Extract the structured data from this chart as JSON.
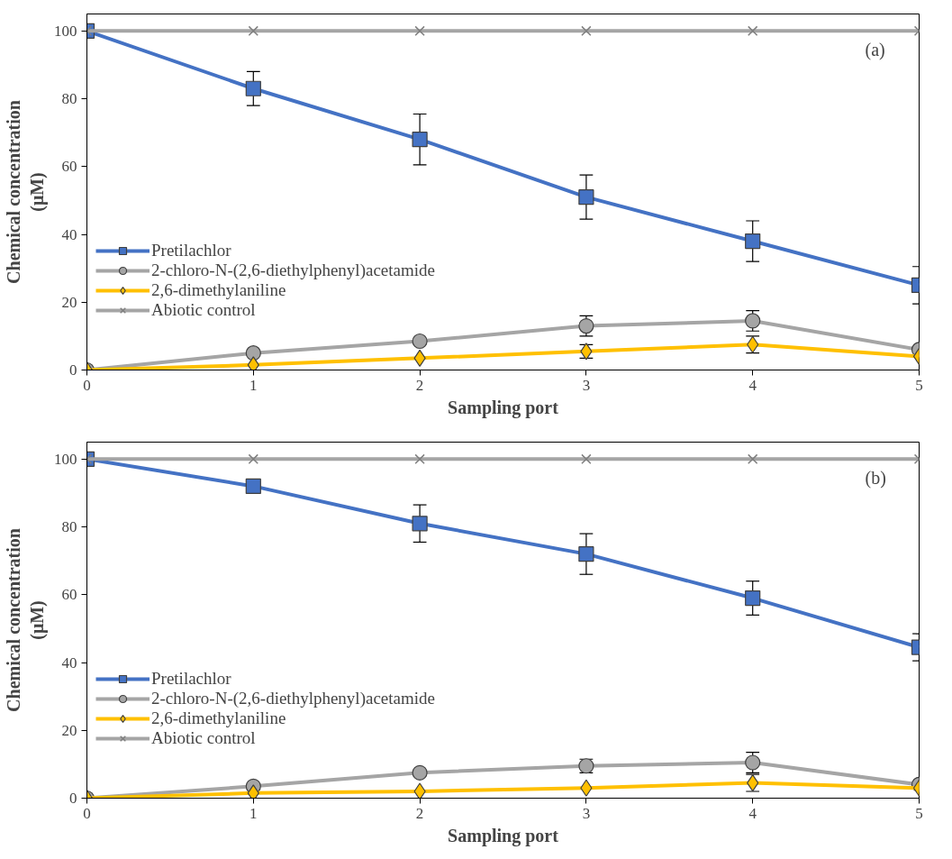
{
  "chart_data": [
    {
      "type": "line",
      "xlabel": "Sampling port",
      "ylabel": "Chemical concentration\n(μM)",
      "annotations": [
        "(a)"
      ],
      "x": [
        0,
        1,
        2,
        3,
        4,
        5
      ],
      "xlim": [
        0,
        5
      ],
      "xticks": [
        0,
        1,
        2,
        3,
        4,
        5
      ],
      "ylim": [
        0,
        105
      ],
      "yticks": [
        0,
        20,
        40,
        60,
        80,
        100
      ],
      "grid": false,
      "legend": "left",
      "line_style": "solid",
      "series": [
        {
          "name": "Pretilachlor",
          "color": "#4472c4",
          "marker": "square",
          "values": [
            100,
            83,
            68,
            51,
            38,
            25
          ],
          "errors": [
            null,
            5,
            7.5,
            6.5,
            6,
            5.5
          ]
        },
        {
          "name": "2-chloro-N-(2,6-diethylphenyl)acetamide",
          "color": "#a5a5a5",
          "marker": "circle",
          "values": [
            0,
            5,
            8.5,
            13,
            14.5,
            6
          ],
          "errors": [
            null,
            null,
            null,
            3,
            3,
            null
          ]
        },
        {
          "name": "2,6-dimethylaniline",
          "color": "#ffc000",
          "marker": "diamond",
          "values": [
            0,
            1.5,
            3.5,
            5.5,
            7.5,
            4
          ],
          "errors": [
            null,
            null,
            null,
            2,
            2.5,
            null
          ]
        },
        {
          "name": "Abiotic control",
          "color": "#a5a5a5",
          "marker": "cross",
          "values": [
            100,
            100,
            100,
            100,
            100,
            100
          ]
        }
      ]
    },
    {
      "type": "line",
      "xlabel": "Sampling port",
      "ylabel": "Chemical concentration\n(μM)",
      "annotations": [
        "(b)"
      ],
      "x": [
        0,
        1,
        2,
        3,
        4,
        5
      ],
      "xlim": [
        0,
        5
      ],
      "xticks": [
        0,
        1,
        2,
        3,
        4,
        5
      ],
      "ylim": [
        0,
        105
      ],
      "yticks": [
        0,
        20,
        40,
        60,
        80,
        100
      ],
      "grid": false,
      "legend": "left",
      "line_style": "solid",
      "series": [
        {
          "name": "Pretilachlor",
          "color": "#4472c4",
          "marker": "square",
          "values": [
            100,
            92,
            81,
            72,
            59,
            44.5
          ],
          "errors": [
            null,
            2,
            5.5,
            6,
            5,
            4
          ]
        },
        {
          "name": "2-chloro-N-(2,6-diethylphenyl)acetamide",
          "color": "#a5a5a5",
          "marker": "circle",
          "values": [
            0,
            3.5,
            7.5,
            9.5,
            10.5,
            4
          ],
          "errors": [
            null,
            null,
            null,
            2,
            3,
            null
          ]
        },
        {
          "name": "2,6-dimethylaniline",
          "color": "#ffc000",
          "marker": "diamond",
          "values": [
            0,
            1.5,
            2,
            3,
            4.5,
            3
          ],
          "errors": [
            null,
            null,
            null,
            null,
            2.5,
            null
          ]
        },
        {
          "name": "Abiotic control",
          "color": "#a5a5a5",
          "marker": "cross",
          "values": [
            100,
            100,
            100,
            100,
            100,
            100
          ]
        }
      ]
    }
  ]
}
